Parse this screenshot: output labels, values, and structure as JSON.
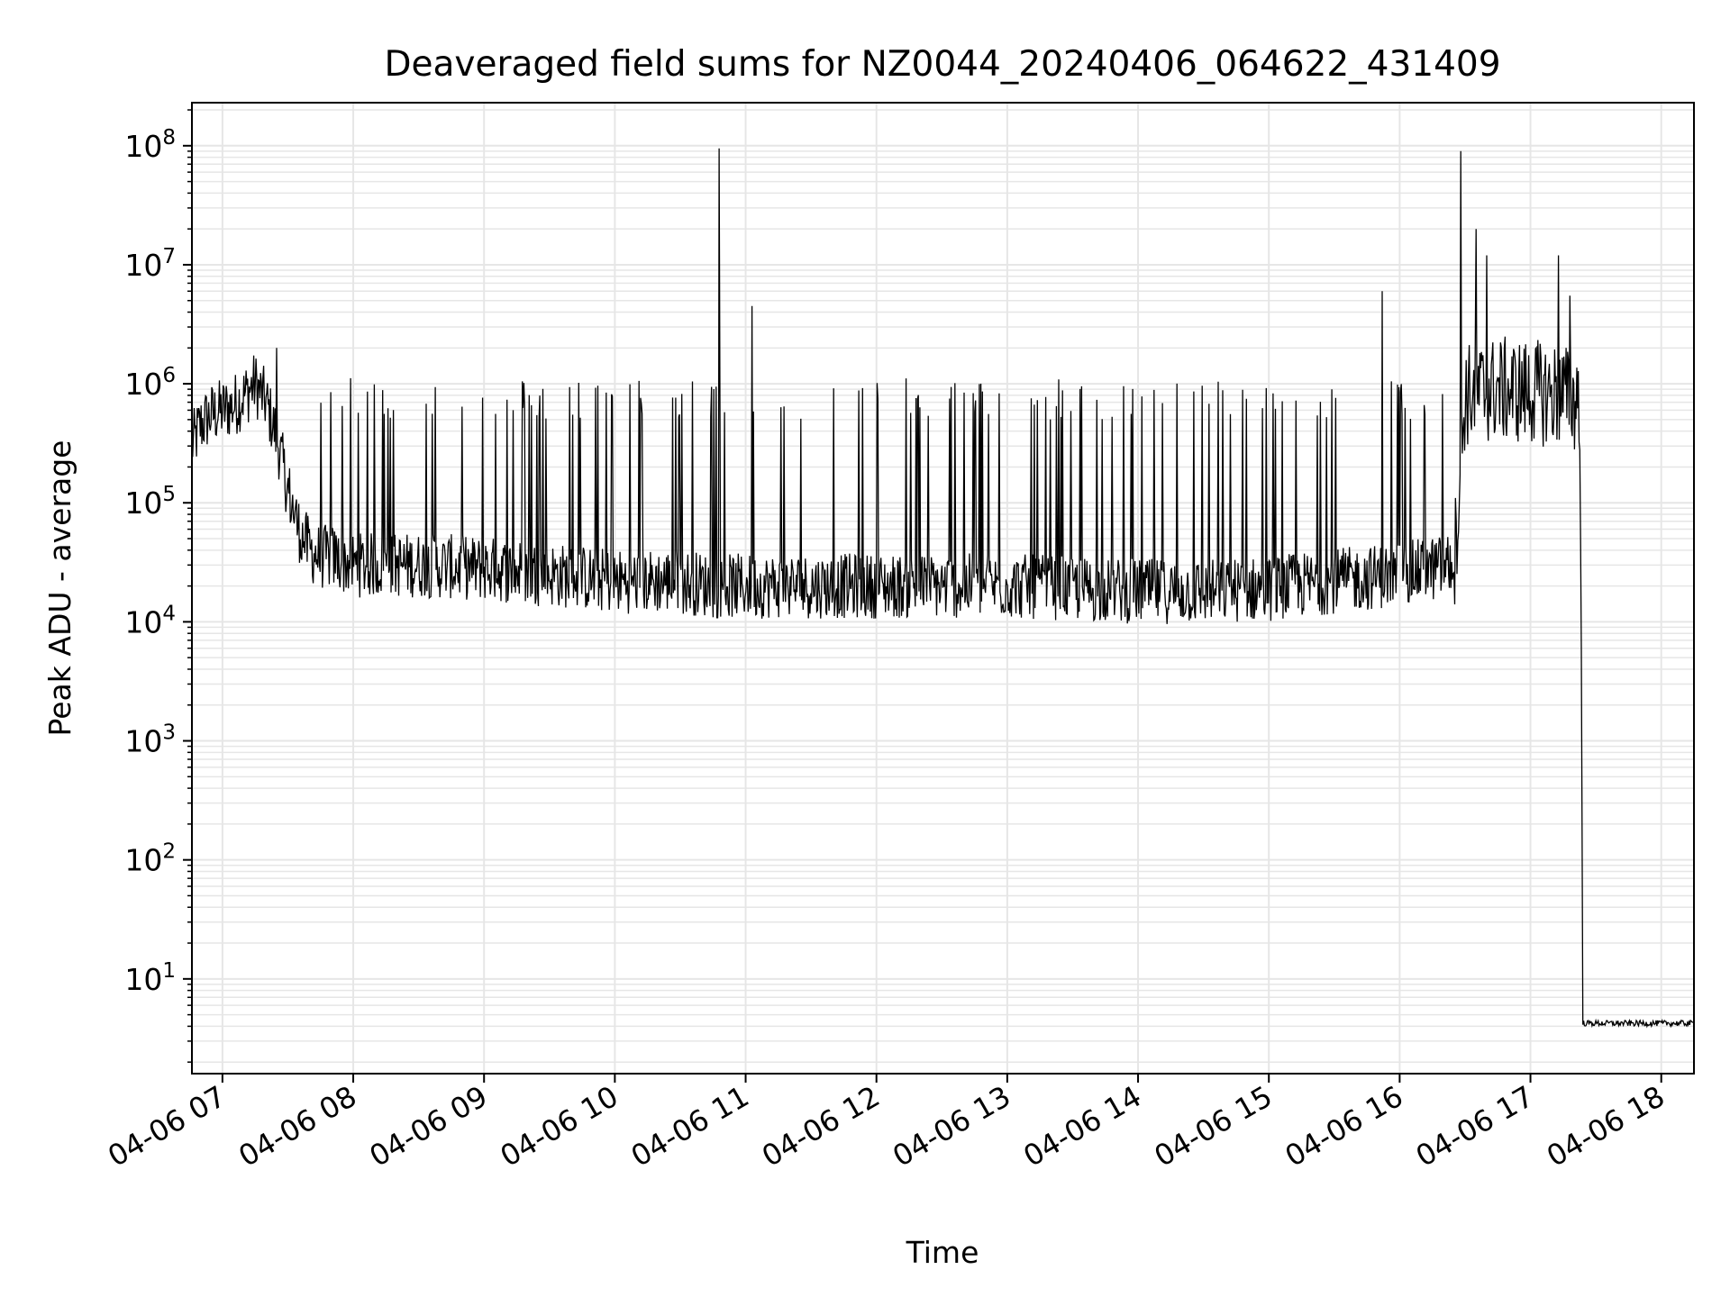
{
  "chart_data": {
    "type": "line",
    "title": "Deaveraged field sums for NZ0044_20240406_064622_431409",
    "xlabel": "Time",
    "ylabel": "Peak ADU - average",
    "yscale": "log",
    "ylim": [
      1.6,
      230000000
    ],
    "xlim": [
      "2024-04-06 06:46",
      "2024-04-06 18:15"
    ],
    "grid": true,
    "line_color": "#000000",
    "grid_color": "#e6e6e6",
    "x_ticks": [
      {
        "t": "2024-04-06 07:00",
        "label": "04-06 07"
      },
      {
        "t": "2024-04-06 08:00",
        "label": "04-06 08"
      },
      {
        "t": "2024-04-06 09:00",
        "label": "04-06 09"
      },
      {
        "t": "2024-04-06 10:00",
        "label": "04-06 10"
      },
      {
        "t": "2024-04-06 11:00",
        "label": "04-06 11"
      },
      {
        "t": "2024-04-06 12:00",
        "label": "04-06 12"
      },
      {
        "t": "2024-04-06 13:00",
        "label": "04-06 13"
      },
      {
        "t": "2024-04-06 14:00",
        "label": "04-06 14"
      },
      {
        "t": "2024-04-06 15:00",
        "label": "04-06 15"
      },
      {
        "t": "2024-04-06 16:00",
        "label": "04-06 16"
      },
      {
        "t": "2024-04-06 17:00",
        "label": "04-06 17"
      },
      {
        "t": "2024-04-06 18:00",
        "label": "04-06 18"
      }
    ],
    "y_ticks": [
      {
        "value": 10,
        "base": "10",
        "exp": "1"
      },
      {
        "value": 100,
        "base": "10",
        "exp": "2"
      },
      {
        "value": 1000,
        "base": "10",
        "exp": "3"
      },
      {
        "value": 10000,
        "base": "10",
        "exp": "4"
      },
      {
        "value": 100000,
        "base": "10",
        "exp": "5"
      },
      {
        "value": 1000000,
        "base": "10",
        "exp": "6"
      },
      {
        "value": 10000000,
        "base": "10",
        "exp": "7"
      },
      {
        "value": 100000000,
        "base": "10",
        "exp": "8"
      }
    ],
    "series": [
      {
        "x": [
          "2024-04-06 06:46",
          "2024-04-06 06:50",
          "2024-04-06 06:55",
          "2024-04-06 07:00",
          "2024-04-06 07:05",
          "2024-04-06 07:10",
          "2024-04-06 07:15",
          "2024-04-06 07:20",
          "2024-04-06 07:25",
          "2024-04-06 07:30",
          "2024-04-06 07:35",
          "2024-04-06 07:40",
          "2024-04-06 07:45",
          "2024-04-06 07:50",
          "2024-04-06 08:00",
          "2024-04-06 08:30",
          "2024-04-06 09:00",
          "2024-04-06 09:30",
          "2024-04-06 10:00",
          "2024-04-06 10:30",
          "2024-04-06 10:45",
          "2024-04-06 11:00",
          "2024-04-06 11:30",
          "2024-04-06 12:00",
          "2024-04-06 12:30",
          "2024-04-06 13:00",
          "2024-04-06 13:30",
          "2024-04-06 14:00",
          "2024-04-06 14:30",
          "2024-04-06 15:00",
          "2024-04-06 15:30",
          "2024-04-06 16:00",
          "2024-04-06 16:25",
          "2024-04-06 16:30",
          "2024-04-06 16:45",
          "2024-04-06 17:00",
          "2024-04-06 17:15",
          "2024-04-06 17:20",
          "2024-04-06 17:22",
          "2024-04-06 17:23",
          "2024-04-06 17:24",
          "2024-04-06 17:40",
          "2024-04-06 18:00",
          "2024-04-06 18:15"
        ],
        "y": [
          300000,
          450000,
          550000,
          600000,
          650000,
          800000,
          1000000,
          700000,
          350000,
          130000,
          60000,
          40000,
          35000,
          35000,
          30000,
          30000,
          28000,
          25000,
          22000,
          22000,
          20000,
          20000,
          20000,
          20000,
          20000,
          20000,
          19000,
          18000,
          18000,
          19000,
          22000,
          25000,
          30000,
          800000,
          900000,
          850000,
          800000,
          700000,
          900000,
          120000,
          4,
          4,
          4,
          4
        ]
      }
    ],
    "spikes": [
      {
        "x": "2024-04-06 07:25",
        "y": 2000000
      },
      {
        "x": "2024-04-06 10:48",
        "y": 95000000
      },
      {
        "x": "2024-04-06 11:03",
        "y": 4500000
      },
      {
        "x": "2024-04-06 15:52",
        "y": 6000000
      },
      {
        "x": "2024-04-06 16:28",
        "y": 90000000
      },
      {
        "x": "2024-04-06 16:35",
        "y": 20000000
      },
      {
        "x": "2024-04-06 16:40",
        "y": 12000000
      },
      {
        "x": "2024-04-06 17:13",
        "y": 12000000
      },
      {
        "x": "2024-04-06 17:18",
        "y": 5500000
      }
    ]
  }
}
